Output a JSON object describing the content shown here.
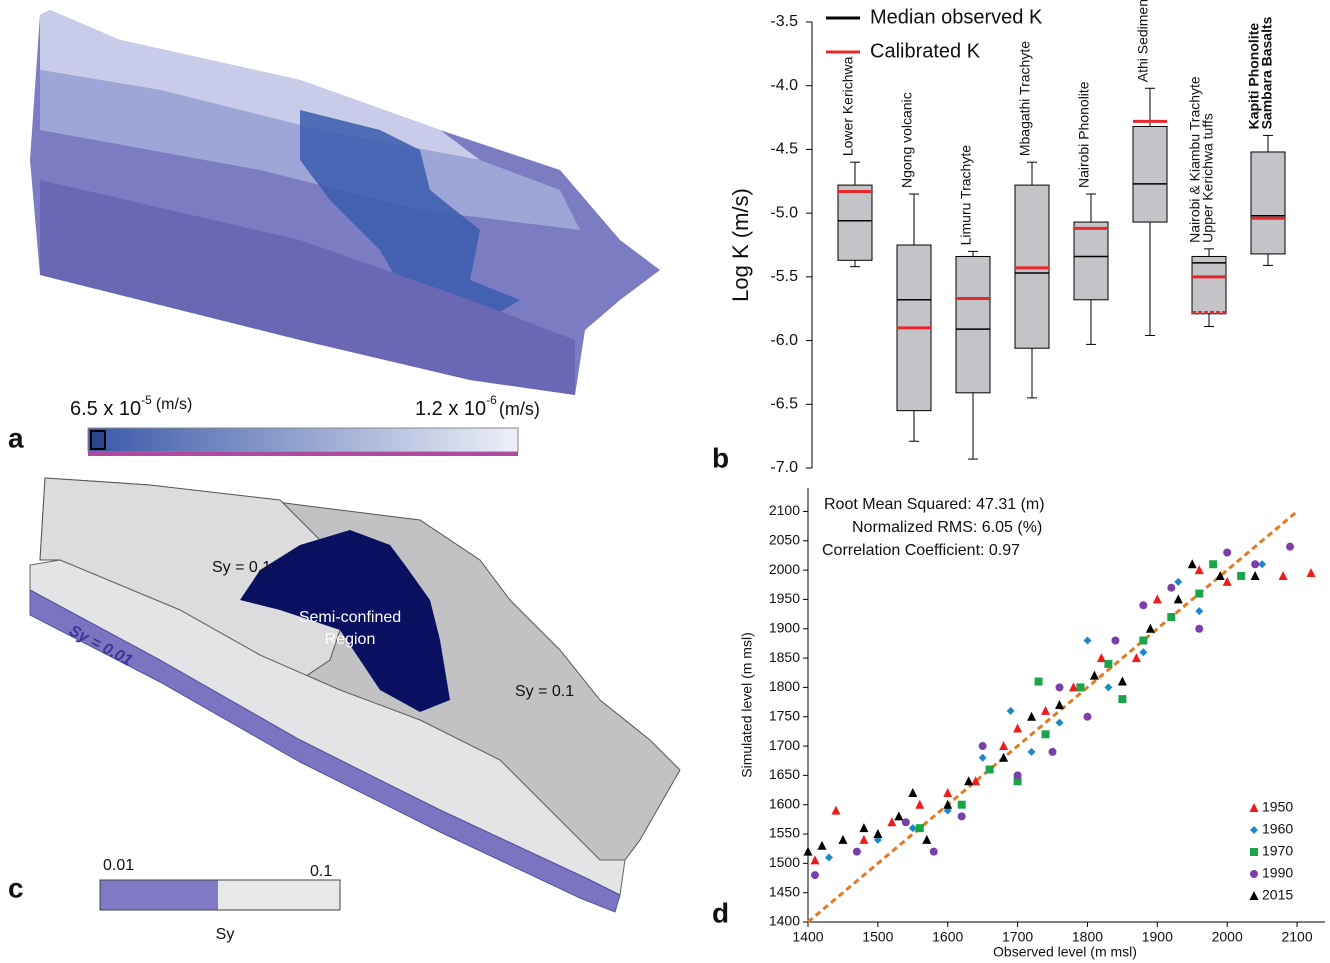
{
  "panel_a": {
    "label": "a",
    "colorbar_left": {
      "base": "6.5 x 10",
      "exponent": "-5",
      "unit": "(m/s)"
    },
    "colorbar_right": {
      "base": "1.2 x 10",
      "exponent": "-6",
      "unit": "(m/s)"
    }
  },
  "panel_c": {
    "label": "c",
    "upper_label": "Sy = 0.1",
    "region_label": [
      "Semi-confined",
      "Region"
    ],
    "right_label": "Sy = 0.1",
    "base_label": "Sy = 0.01",
    "colorbar_min": "0.01",
    "colorbar_max": "0.1",
    "colorbar_title": "Sy"
  },
  "chart_data": [
    {
      "type": "box",
      "panel": "b",
      "ylabel": "Log K (m/s)",
      "ylim": [
        -7,
        -3.5
      ],
      "yticks": [
        -3.5,
        {
          "value": -4,
          "label": "-4.0"
        },
        -4.5,
        {
          "value": -5,
          "label": "-5.0"
        },
        -5.5,
        {
          "value": -6,
          "label": "-6.0"
        },
        -6.5,
        {
          "value": -7,
          "label": "-7.0"
        }
      ],
      "categories": [
        [
          "Lower Kerichwa"
        ],
        [
          "Ngong volcanic"
        ],
        [
          "Limuru Trachyte"
        ],
        [
          "Mbagathi Trachyte"
        ],
        [
          "Nairobi Phonolite"
        ],
        [
          "Athi Sediments"
        ],
        [
          "Nairobi & Kiambu Trachyte",
          "Upper Kerichwa tuffs"
        ],
        [
          "Kapiti Phonolite",
          "Sambara Basalts"
        ]
      ],
      "max": [
        -4.6,
        -4.85,
        -5.3,
        -4.6,
        -4.85,
        -4.02,
        -5.28,
        -4.39
      ],
      "q3": [
        -4.78,
        -5.25,
        -5.34,
        -4.78,
        -5.07,
        -4.32,
        -5.34,
        -4.52
      ],
      "median": [
        -5.06,
        -5.68,
        -5.91,
        -5.47,
        -5.34,
        -4.77,
        -5.39,
        -5.02
      ],
      "q1": [
        -5.37,
        -6.55,
        -6.41,
        -6.06,
        -5.68,
        -5.07,
        -5.79,
        -5.32
      ],
      "min": [
        -5.42,
        -6.79,
        -6.93,
        -6.45,
        -6.03,
        -5.96,
        -5.89,
        -5.41
      ],
      "calibrated": [
        [
          -4.83
        ],
        [
          -5.9
        ],
        [
          -5.67
        ],
        [
          -5.43
        ],
        [
          -5.12
        ],
        [
          -4.28
        ],
        [
          -5.5,
          -5.78
        ],
        [
          -5.04
        ]
      ],
      "box_color": "#c4c4c8",
      "legend": [
        {
          "name": "Median observed K",
          "color": "#000000"
        },
        {
          "name": "Calibrated K",
          "color": "#e8282c"
        }
      ]
    },
    {
      "type": "scatter",
      "panel": "d",
      "xlabel": "Observed level (m msl)",
      "ylabel": "Simulated level (m msl)",
      "xlim": [
        1400,
        2140
      ],
      "ylim": [
        1400,
        2140
      ],
      "xticks": [
        1400,
        1500,
        1600,
        1700,
        1800,
        1900,
        2000,
        2100
      ],
      "yticks": [
        1400,
        1450,
        1500,
        1550,
        1600,
        1650,
        1700,
        1750,
        1800,
        1850,
        1900,
        1950,
        2000,
        2050,
        2100
      ],
      "annotations": [
        "Root Mean Squared: 47.31 (m)",
        "Normalized RMS: 6.05 (%)",
        "Correlation Coefficient: 0.97"
      ],
      "one_to_one": {
        "x": [
          1400,
          2100
        ],
        "y": [
          1400,
          2100
        ],
        "color": "#e07b20"
      },
      "series": [
        {
          "name": "1950",
          "color": "#ee1c1c",
          "marker": "triangle",
          "x": [
            1410,
            1440,
            1480,
            1520,
            1560,
            1600,
            1640,
            1680,
            1700,
            1740,
            1780,
            1820,
            1870,
            1900,
            1960,
            2000,
            2080,
            2120
          ],
          "values": [
            1505,
            1590,
            1540,
            1570,
            1600,
            1620,
            1640,
            1700,
            1730,
            1760,
            1800,
            1850,
            1850,
            1950,
            2000,
            1980,
            1990,
            1995
          ]
        },
        {
          "name": "1960",
          "color": "#1f86c8",
          "marker": "diamond",
          "x": [
            1430,
            1500,
            1550,
            1600,
            1650,
            1690,
            1720,
            1760,
            1800,
            1830,
            1880,
            1930,
            1960,
            2050
          ],
          "values": [
            1510,
            1540,
            1560,
            1590,
            1680,
            1760,
            1690,
            1740,
            1880,
            1800,
            1860,
            1980,
            1930,
            2010
          ]
        },
        {
          "name": "1970",
          "color": "#1aa54a",
          "marker": "square",
          "x": [
            1560,
            1620,
            1660,
            1700,
            1740,
            1790,
            1830,
            1880,
            1920,
            1960,
            1980,
            2020,
            1730,
            1850
          ],
          "values": [
            1560,
            1600,
            1660,
            1640,
            1720,
            1800,
            1840,
            1880,
            1920,
            1960,
            2010,
            1990,
            1810,
            1780
          ]
        },
        {
          "name": "1990",
          "color": "#7a3fa8",
          "marker": "circle",
          "x": [
            1410,
            1470,
            1540,
            1580,
            1620,
            1650,
            1700,
            1750,
            1800,
            1840,
            1880,
            1920,
            1960,
            2000,
            2040,
            2090,
            1760
          ],
          "values": [
            1480,
            1520,
            1570,
            1520,
            1580,
            1700,
            1650,
            1690,
            1750,
            1880,
            1940,
            1970,
            1900,
            2030,
            2010,
            2040,
            1800
          ]
        },
        {
          "name": "2015",
          "color": "#000000",
          "marker": "triangle",
          "x": [
            1400,
            1420,
            1450,
            1480,
            1500,
            1530,
            1550,
            1570,
            1600,
            1630,
            1680,
            1720,
            1760,
            1810,
            1850,
            1890,
            1930,
            1990,
            2040,
            1950
          ],
          "values": [
            1520,
            1530,
            1540,
            1560,
            1550,
            1580,
            1620,
            1540,
            1600,
            1640,
            1680,
            1750,
            1770,
            1820,
            1810,
            1900,
            1950,
            1990,
            1990,
            2010
          ]
        }
      ]
    }
  ]
}
